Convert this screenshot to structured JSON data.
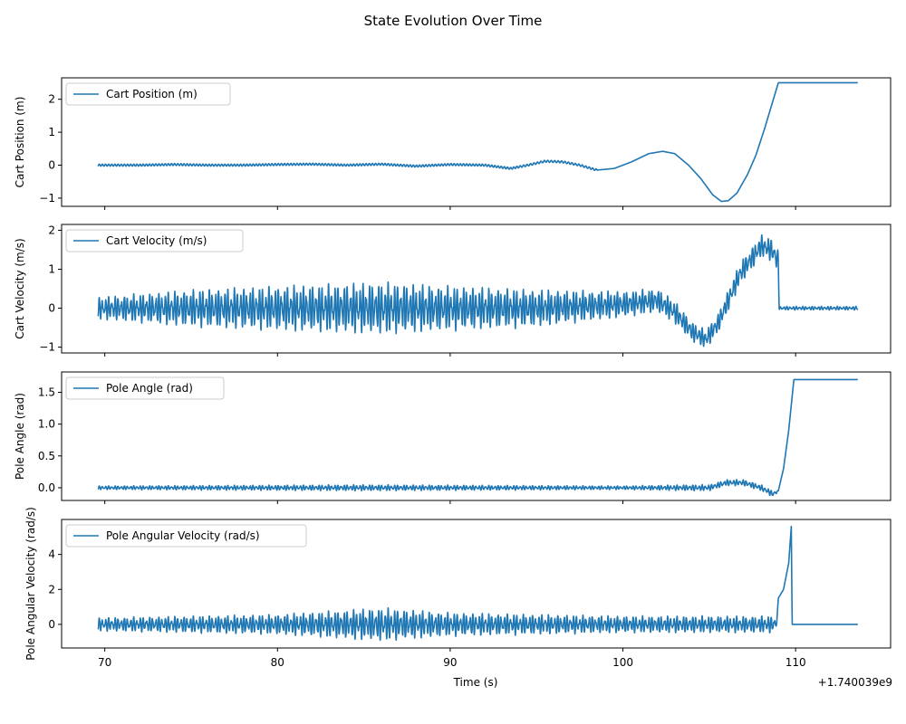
{
  "figure": {
    "suptitle": "State Evolution Over Time",
    "xlabel": "Time (s)",
    "offset_label": "+1.740039e9"
  },
  "chart_data": [
    {
      "type": "line",
      "ylabel": "Cart Position (m)",
      "legend_position": "upper-left",
      "color": "#1f77b4",
      "xlim": [
        67.5,
        115.5
      ],
      "ylim": [
        -1.25,
        2.65
      ],
      "xticks": [
        70,
        80,
        90,
        100,
        110
      ],
      "yticks": [
        -1,
        0,
        1,
        2
      ],
      "series": [
        {
          "name": "Cart Position (m)",
          "style": "smooth",
          "points": [
            [
              69.6,
              0.0
            ],
            [
              70.5,
              0.0
            ],
            [
              72.0,
              0.0
            ],
            [
              74.0,
              0.02
            ],
            [
              76.0,
              0.0
            ],
            [
              78.0,
              0.0
            ],
            [
              80.0,
              0.02
            ],
            [
              82.0,
              0.03
            ],
            [
              84.0,
              0.0
            ],
            [
              86.0,
              0.03
            ],
            [
              88.0,
              -0.03
            ],
            [
              90.0,
              0.02
            ],
            [
              92.0,
              0.0
            ],
            [
              93.5,
              -0.1
            ],
            [
              94.5,
              0.0
            ],
            [
              95.5,
              0.12
            ],
            [
              96.5,
              0.1
            ],
            [
              97.5,
              0.0
            ],
            [
              98.5,
              -0.15
            ],
            [
              99.5,
              -0.1
            ],
            [
              100.5,
              0.1
            ],
            [
              101.5,
              0.35
            ],
            [
              102.3,
              0.42
            ],
            [
              103.0,
              0.35
            ],
            [
              103.8,
              0.0
            ],
            [
              104.5,
              -0.4
            ],
            [
              105.2,
              -0.9
            ],
            [
              105.7,
              -1.1
            ],
            [
              106.1,
              -1.08
            ],
            [
              106.6,
              -0.85
            ],
            [
              107.2,
              -0.3
            ],
            [
              107.7,
              0.3
            ],
            [
              108.2,
              1.1
            ],
            [
              108.6,
              1.8
            ],
            [
              109.0,
              2.5
            ],
            [
              113.6,
              2.5
            ]
          ],
          "osc": [
            [
              69.6,
              94.0,
              0.03,
              5.5
            ],
            [
              94.0,
              98.5,
              0.03,
              5.0
            ]
          ]
        }
      ]
    },
    {
      "type": "line",
      "ylabel": "Cart Velocity (m/s)",
      "legend_position": "upper-left",
      "color": "#1f77b4",
      "xlim": [
        67.5,
        115.5
      ],
      "ylim": [
        -1.15,
        2.15
      ],
      "xticks": [
        70,
        80,
        90,
        100,
        110
      ],
      "yticks": [
        -1,
        0,
        1,
        2
      ],
      "series": [
        {
          "name": "Cart Velocity (m/s)",
          "style": "oscillating",
          "points": [
            [
              69.6,
              0.0
            ],
            [
              75.0,
              0.0
            ],
            [
              80.0,
              0.0
            ],
            [
              85.0,
              0.0
            ],
            [
              90.0,
              0.0
            ],
            [
              95.0,
              0.0
            ],
            [
              100.0,
              0.1
            ],
            [
              102.0,
              0.2
            ],
            [
              103.0,
              -0.1
            ],
            [
              104.0,
              -0.6
            ],
            [
              104.8,
              -0.8
            ],
            [
              105.5,
              -0.4
            ],
            [
              106.2,
              0.3
            ],
            [
              106.8,
              0.9
            ],
            [
              107.5,
              1.3
            ],
            [
              108.0,
              1.6
            ],
            [
              108.6,
              1.5
            ],
            [
              109.0,
              1.2
            ],
            [
              109.05,
              0.0
            ],
            [
              113.6,
              0.0
            ]
          ],
          "amp": [
            [
              69.6,
              0.3
            ],
            [
              75.0,
              0.5
            ],
            [
              80.0,
              0.6
            ],
            [
              86.0,
              0.7
            ],
            [
              90.0,
              0.6
            ],
            [
              95.0,
              0.5
            ],
            [
              100.0,
              0.35
            ],
            [
              103.0,
              0.3
            ],
            [
              104.5,
              0.25
            ],
            [
              107.0,
              0.3
            ],
            [
              109.0,
              0.3
            ],
            [
              109.05,
              0.05
            ],
            [
              113.6,
              0.05
            ]
          ],
          "freq": 5.5
        }
      ]
    },
    {
      "type": "line",
      "ylabel": "Pole Angle (rad)",
      "legend_position": "upper-left",
      "color": "#1f77b4",
      "xlim": [
        67.5,
        115.5
      ],
      "ylim": [
        -0.2,
        1.82
      ],
      "xticks": [
        70,
        80,
        90,
        100,
        110
      ],
      "yticks": [
        0.0,
        0.5,
        1.0,
        1.5
      ],
      "series": [
        {
          "name": "Pole Angle (rad)",
          "style": "oscillating",
          "points": [
            [
              69.6,
              0.0
            ],
            [
              104.0,
              0.0
            ],
            [
              105.0,
              0.0
            ],
            [
              106.0,
              0.08
            ],
            [
              107.0,
              0.08
            ],
            [
              108.0,
              0.0
            ],
            [
              108.7,
              -0.1
            ],
            [
              109.0,
              -0.05
            ],
            [
              109.3,
              0.3
            ],
            [
              109.6,
              0.9
            ],
            [
              109.9,
              1.7
            ],
            [
              113.6,
              1.7
            ]
          ],
          "amp": [
            [
              69.6,
              0.03
            ],
            [
              85.0,
              0.05
            ],
            [
              100.0,
              0.03
            ],
            [
              104.0,
              0.05
            ],
            [
              108.8,
              0.05
            ],
            [
              109.0,
              0.0
            ],
            [
              113.6,
              0.0
            ]
          ],
          "freq": 5.5
        }
      ]
    },
    {
      "type": "line",
      "ylabel": "Pole Angular Velocity (rad/s)",
      "legend_position": "upper-left",
      "color": "#1f77b4",
      "xlim": [
        67.5,
        115.5
      ],
      "ylim": [
        -1.35,
        6.0
      ],
      "xticks": [
        70,
        80,
        90,
        100,
        110
      ],
      "yticks": [
        0,
        2,
        4
      ],
      "xticklabels": [
        "70",
        "80",
        "90",
        "100",
        "110"
      ],
      "series": [
        {
          "name": "Pole Angular Velocity (rad/s)",
          "style": "oscillating",
          "points": [
            [
              69.6,
              0.0
            ],
            [
              108.9,
              0.0
            ],
            [
              109.0,
              1.5
            ],
            [
              109.3,
              2.0
            ],
            [
              109.6,
              3.5
            ],
            [
              109.75,
              5.6
            ],
            [
              109.8,
              0.0
            ],
            [
              113.6,
              0.0
            ]
          ],
          "amp": [
            [
              69.6,
              0.4
            ],
            [
              80.0,
              0.6
            ],
            [
              86.0,
              1.0
            ],
            [
              90.0,
              0.7
            ],
            [
              100.0,
              0.5
            ],
            [
              108.8,
              0.5
            ],
            [
              108.9,
              0.0
            ],
            [
              113.6,
              0.0
            ]
          ],
          "freq": 5.5
        }
      ]
    }
  ]
}
